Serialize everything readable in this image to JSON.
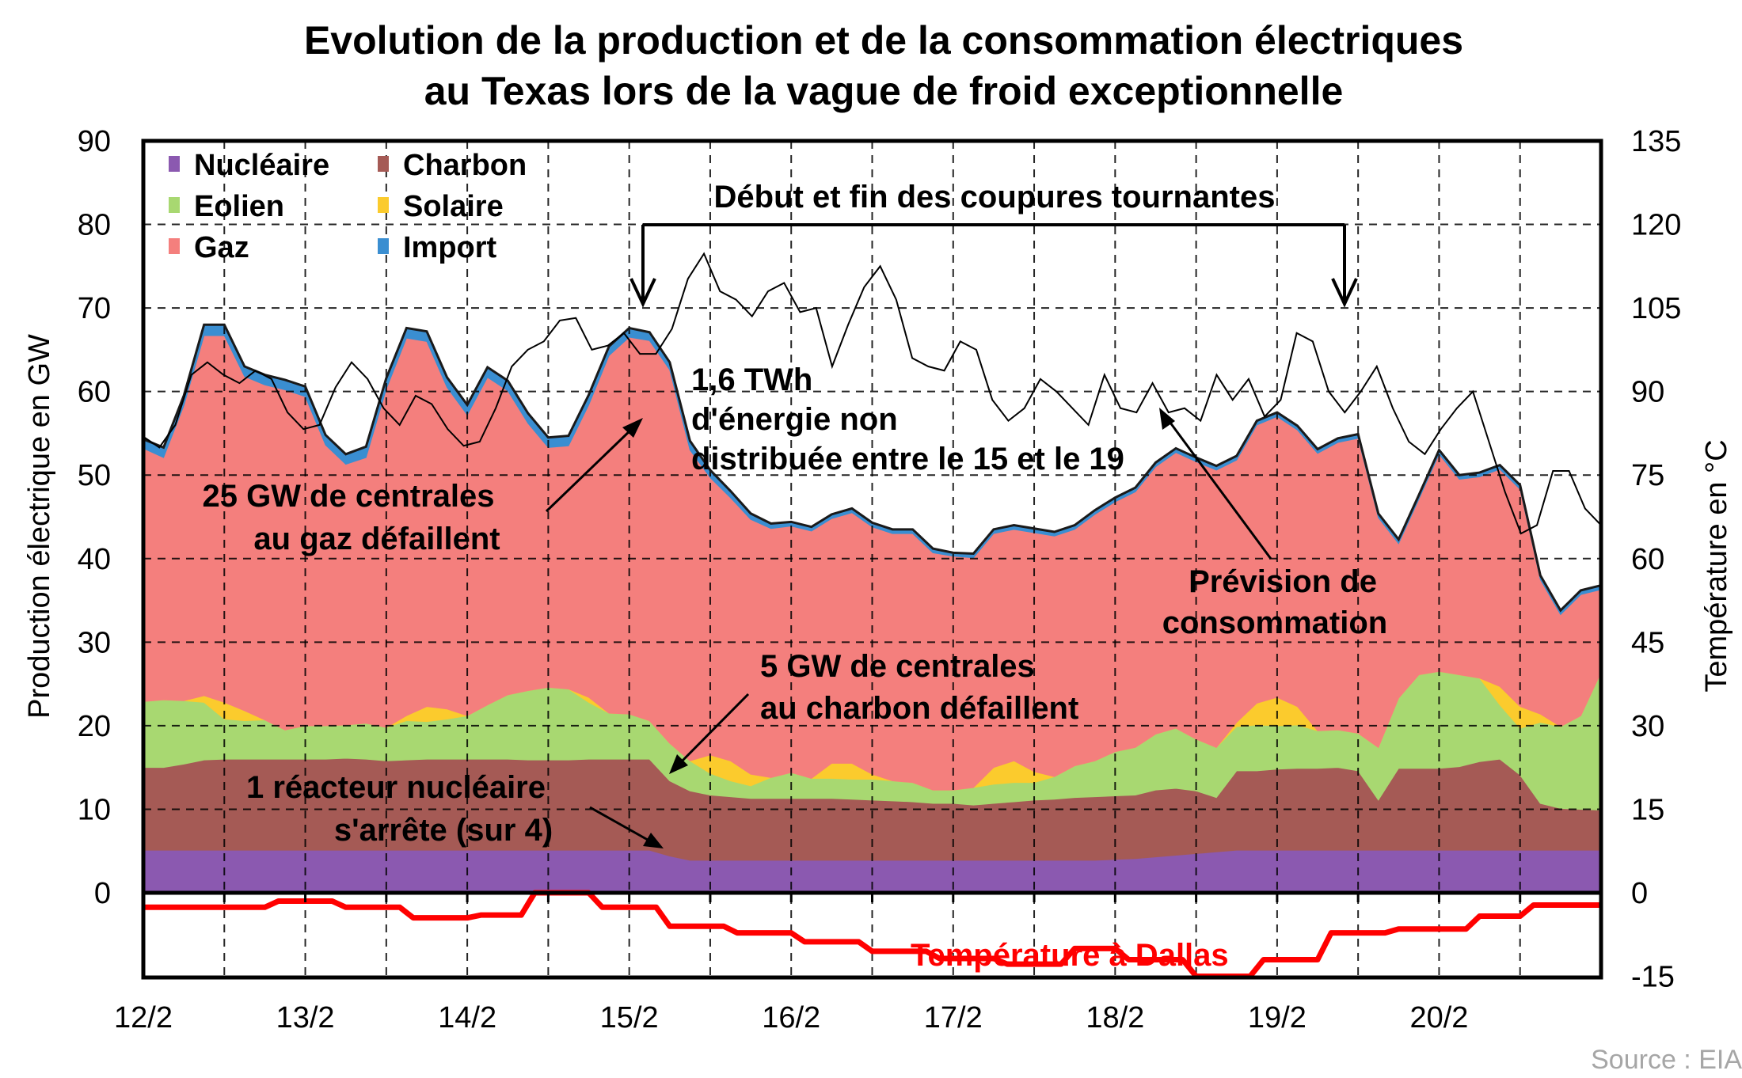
{
  "chart_data": {
    "type": "area",
    "title": [
      "Evolution de la production et de la consommation  électriques",
      "au Texas lors de la vague de froid exceptionnelle"
    ],
    "ylabel": "Production électrique en GW",
    "y2label": "Température en °C",
    "ylim": [
      0,
      90
    ],
    "y2lim": [
      -15,
      135
    ],
    "yticks": [
      "90",
      "80",
      "70",
      "60",
      "50",
      "40",
      "30",
      "20",
      "10",
      "0"
    ],
    "y2ticks": [
      "135",
      "120",
      "105",
      "90",
      "75",
      "60",
      "45",
      "30",
      "15",
      "0",
      "-15"
    ],
    "xticks": [
      "12/2",
      "13/2",
      "14/2",
      "15/2",
      "16/2",
      "17/2",
      "18/2",
      "19/2",
      "20/2"
    ],
    "x_unit": "hours since 12/2 00:00",
    "x": [
      0,
      3,
      6,
      9,
      12,
      15,
      18,
      21,
      24,
      27,
      30,
      33,
      36,
      39,
      42,
      45,
      48,
      51,
      54,
      57,
      60,
      63,
      66,
      69,
      72,
      75,
      78,
      81,
      84,
      87,
      90,
      93,
      96,
      99,
      102,
      105,
      108,
      111,
      114,
      117,
      120,
      123,
      126,
      129,
      132,
      135,
      138,
      141,
      144,
      147,
      150,
      153,
      156,
      159,
      162,
      165,
      168,
      171,
      174,
      177,
      180,
      183,
      186,
      189,
      192,
      195,
      198,
      201,
      204,
      207,
      210,
      213,
      216
    ],
    "legend": [
      {
        "name": "Nucléaire",
        "color": "#8b59b0"
      },
      {
        "name": "Charbon",
        "color": "#a55a55"
      },
      {
        "name": "Eolien",
        "color": "#a8d871"
      },
      {
        "name": "Solaire",
        "color": "#fbcb2d"
      },
      {
        "name": "Gaz",
        "color": "#f47f7d"
      },
      {
        "name": "Import",
        "color": "#3a8ed1"
      }
    ],
    "series": [
      {
        "name": "Nucléaire",
        "values": [
          5.1,
          5.1,
          5.1,
          5.1,
          5.1,
          5.1,
          5.1,
          5.1,
          5.1,
          5.1,
          5.1,
          5.1,
          5.1,
          5.1,
          5.1,
          5.1,
          5.1,
          5.1,
          5.1,
          5.1,
          5.1,
          5.1,
          5.1,
          5.1,
          5.1,
          5.1,
          4.4,
          3.9,
          3.9,
          3.9,
          3.9,
          3.9,
          3.9,
          3.9,
          3.9,
          3.9,
          3.9,
          3.9,
          3.9,
          3.9,
          3.9,
          3.9,
          3.9,
          3.9,
          3.9,
          3.9,
          3.9,
          3.9,
          4.0,
          4.1,
          4.3,
          4.5,
          4.7,
          4.9,
          5.1,
          5.1,
          5.1,
          5.1,
          5.1,
          5.1,
          5.1,
          5.1,
          5.1,
          5.1,
          5.1,
          5.1,
          5.1,
          5.1,
          5.1,
          5.1,
          5.1,
          5.1,
          5.1
        ]
      },
      {
        "name": "Charbon",
        "values": [
          9.9,
          9.9,
          10.3,
          10.8,
          10.9,
          10.9,
          10.9,
          10.9,
          10.9,
          10.9,
          11.0,
          10.9,
          10.7,
          10.8,
          10.9,
          10.9,
          10.9,
          10.9,
          10.9,
          10.8,
          10.8,
          10.8,
          10.9,
          10.9,
          10.9,
          10.9,
          9.0,
          8.3,
          7.8,
          7.6,
          7.4,
          7.4,
          7.4,
          7.4,
          7.4,
          7.3,
          7.2,
          7.1,
          7.0,
          6.8,
          6.8,
          6.6,
          6.8,
          7.0,
          7.2,
          7.3,
          7.5,
          7.6,
          7.6,
          7.6,
          8.0,
          8.0,
          7.5,
          6.5,
          9.5,
          9.5,
          9.7,
          9.8,
          9.8,
          9.9,
          9.5,
          6.0,
          9.8,
          9.8,
          9.8,
          10.0,
          10.6,
          10.9,
          9.0,
          5.6,
          5.0,
          4.9,
          4.8
        ]
      },
      {
        "name": "Eolien",
        "values": [
          7.9,
          8.1,
          7.6,
          6.9,
          4.8,
          4.6,
          4.7,
          3.5,
          4.0,
          4.0,
          4.0,
          4.3,
          4.0,
          4.7,
          4.5,
          4.8,
          5.2,
          6.5,
          7.7,
          8.3,
          8.7,
          8.5,
          6.8,
          5.5,
          5.4,
          4.6,
          4.5,
          3.6,
          2.6,
          1.9,
          1.5,
          2.5,
          3.1,
          2.4,
          2.4,
          2.4,
          2.5,
          2.4,
          2.3,
          1.6,
          1.6,
          2.1,
          2.3,
          2.3,
          2.1,
          2.7,
          3.8,
          4.3,
          5.3,
          5.7,
          6.7,
          7.2,
          6.2,
          6.0,
          5.3,
          5.5,
          5.2,
          5.2,
          4.5,
          4.5,
          4.5,
          6.3,
          8.4,
          11.2,
          11.6,
          11.0,
          10.0,
          6.5,
          5.6,
          9.7,
          9.8,
          11.2,
          16.5
        ]
      },
      {
        "name": "Solaire",
        "values": [
          0,
          0,
          0,
          0.8,
          2.0,
          1.2,
          0,
          0,
          0,
          0,
          0,
          0,
          0,
          0.6,
          1.8,
          1.2,
          0,
          0,
          0,
          0,
          0,
          0,
          0.6,
          0,
          0,
          0,
          0,
          0,
          2.2,
          2.4,
          1.4,
          0,
          0,
          0,
          1.8,
          1.9,
          0.6,
          0,
          0,
          0,
          0,
          0,
          2.0,
          2.6,
          1.3,
          0,
          0,
          0,
          0,
          0,
          0,
          0,
          0,
          0,
          0.5,
          2.6,
          3.4,
          2.2,
          0,
          0,
          0,
          0,
          0,
          0,
          0,
          0,
          0,
          2.2,
          2.6,
          1.0,
          0,
          0,
          0
        ]
      },
      {
        "name": "Gaz",
        "values": [
          30.3,
          29.0,
          35.3,
          43.1,
          43.9,
          40.0,
          40.1,
          40.7,
          39.4,
          33.6,
          31.2,
          31.8,
          40.5,
          45.2,
          43.7,
          38.5,
          36.0,
          39.2,
          36.4,
          32.0,
          28.7,
          29.1,
          35.0,
          42.8,
          45.1,
          45.5,
          44.7,
          37.2,
          33.2,
          31.5,
          30.5,
          29.8,
          29.5,
          29.6,
          29.3,
          30.0,
          29.6,
          29.6,
          29.8,
          28.4,
          28.0,
          27.5,
          28.0,
          27.7,
          28.6,
          28.8,
          28.3,
          29.5,
          29.9,
          30.6,
          32.0,
          33.0,
          33.2,
          33.2,
          31.4,
          33.3,
          33.6,
          33.1,
          33.2,
          34.4,
          35.3,
          27.5,
          18.5,
          21.0,
          26.0,
          23.4,
          24.1,
          26.0,
          26.0,
          16.1,
          13.4,
          14.5,
          9.9
        ]
      },
      {
        "name": "Import",
        "values": [
          1.1,
          1.2,
          1.2,
          1.3,
          1.3,
          1.2,
          1.2,
          1.2,
          1.2,
          1.2,
          1.2,
          1.3,
          1.3,
          1.2,
          1.2,
          1.2,
          1.2,
          1.2,
          1.2,
          1.2,
          1.2,
          1.2,
          1.2,
          1.1,
          1.1,
          1.0,
          0.9,
          1.1,
          0.9,
          0.8,
          0.7,
          0.6,
          0.5,
          0.5,
          0.5,
          0.5,
          0.5,
          0.5,
          0.5,
          0.5,
          0.4,
          0.5,
          0.5,
          0.5,
          0.5,
          0.5,
          0.5,
          0.5,
          0.5,
          0.5,
          0.5,
          0.5,
          0.5,
          0.5,
          0.5,
          0.5,
          0.5,
          0.5,
          0.5,
          0.5,
          0.5,
          0.5,
          0.5,
          0.5,
          0.5,
          0.5,
          0.5,
          0.5,
          0.5,
          0.5,
          0.5,
          0.5,
          0.5
        ]
      }
    ],
    "demand_forecast": {
      "name": "Prévision de consommation",
      "color": "#000000",
      "values": [
        54.6,
        53.3,
        56.0,
        62.0,
        63.5,
        62.0,
        61.0,
        62.5,
        61.5,
        57.5,
        55.5,
        56.0,
        60.5,
        63.5,
        61.5,
        58.0,
        56.0,
        59.5,
        58.5,
        55.5,
        53.5,
        54.0,
        58.0,
        63.0,
        65.0,
        66.0,
        68.5,
        68.8,
        65.0,
        65.5,
        67.0,
        64.5,
        64.5,
        67.5,
        73.5,
        76.5,
        72.0,
        71.0,
        69.0,
        72.0,
        73.0,
        69.5,
        70.0,
        63.0,
        68.0,
        72.5,
        75.0,
        71.0,
        64.0,
        63.0,
        62.5,
        66.0,
        65.0,
        59.0,
        56.5,
        58.0,
        61.5,
        60.0,
        58.0,
        56.0,
        62.0,
        58.0,
        57.5,
        61.0,
        57.5,
        58.0,
        56.5,
        62.0,
        59.0,
        61.5,
        57.0,
        59.0,
        67.0,
        66.0,
        60.0,
        57.5,
        60.0,
        63.0,
        58.0,
        54.0,
        52.5,
        55.5,
        58.0,
        60.0,
        54.0,
        48.0,
        43.0,
        44.0,
        50.5,
        50.5,
        46.0,
        44.0
      ]
    },
    "temperature": {
      "name": "Température à Dallas",
      "color": "#ff0000",
      "steps": [
        [
          0,
          -2.6
        ],
        [
          18,
          -2.6
        ],
        [
          20,
          -1.5
        ],
        [
          28,
          -1.5
        ],
        [
          30,
          -2.6
        ],
        [
          38,
          -2.6
        ],
        [
          40,
          -4.5
        ],
        [
          48,
          -4.5
        ],
        [
          50,
          -4.0
        ],
        [
          56,
          -4.0
        ],
        [
          58,
          0
        ],
        [
          66,
          0
        ],
        [
          68,
          -2.6
        ],
        [
          76,
          -2.6
        ],
        [
          78,
          -6.0
        ],
        [
          86,
          -6.0
        ],
        [
          88,
          -7.2
        ],
        [
          96,
          -7.2
        ],
        [
          98,
          -8.8
        ],
        [
          106,
          -8.8
        ],
        [
          108,
          -10.5
        ],
        [
          116,
          -10.5
        ],
        [
          118,
          -11.8
        ],
        [
          126,
          -11.8
        ],
        [
          128,
          -12.8
        ],
        [
          136,
          -12.8
        ],
        [
          138,
          -10.0
        ],
        [
          144,
          -10.0
        ],
        [
          146,
          -12.0
        ],
        [
          154,
          -12.0
        ],
        [
          156,
          -15.0
        ],
        [
          164,
          -15.0
        ],
        [
          166,
          -12.0
        ],
        [
          174,
          -12.0
        ],
        [
          176,
          -7.2
        ],
        [
          184,
          -7.2
        ],
        [
          186,
          -6.5
        ],
        [
          196,
          -6.5
        ],
        [
          198,
          -4.2
        ],
        [
          204,
          -4.2
        ],
        [
          206,
          -2.2
        ],
        [
          214,
          -2.2
        ],
        [
          216,
          -2.2
        ]
      ]
    },
    "annotations": {
      "outages": "Début et fin des coupures tournantes",
      "undistributed": [
        "1,6 TWh",
        "d'énergie non",
        "distribuée entre le 15 et le 19"
      ],
      "gas_fail": [
        "25 GW de centrales",
        "au gaz défaillent"
      ],
      "forecast": [
        "Prévision de",
        "consommation"
      ],
      "coal_fail": [
        "5 GW de centrales",
        "au charbon défaillent"
      ],
      "nuclear": [
        "1 réacteur nucléaire",
        "s'arrête (sur 4)"
      ],
      "temperature_label": "Température à Dallas"
    },
    "source": "Source : EIA"
  }
}
